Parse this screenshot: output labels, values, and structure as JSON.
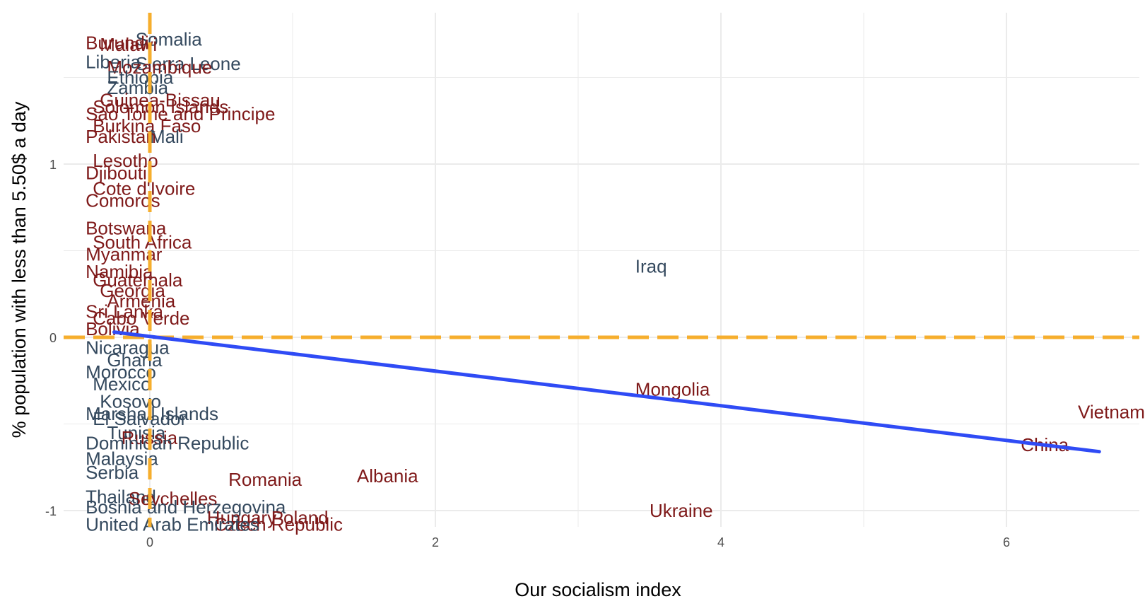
{
  "chart_data": {
    "type": "scatter",
    "xlabel": "Our socialism index",
    "ylabel": "% population with less than 5.50$ a day",
    "xlim": [
      -0.6,
      7.0
    ],
    "ylim": [
      -1.2,
      1.85
    ],
    "x_ticks": [
      0,
      2,
      4,
      6
    ],
    "y_ticks": [
      -1,
      0,
      1
    ],
    "x_tick_labels": [
      "0",
      "2",
      "4",
      "6"
    ],
    "y_tick_labels": [
      "-1",
      "0",
      "1"
    ],
    "grid": true,
    "colors": {
      "positive": "#7f1a1a",
      "negative": "#34495e",
      "reference": "#f6ae2d",
      "trend": "#2f4bf5",
      "grid": "#ebebeb"
    },
    "reference_lines": {
      "x": 0,
      "y": 0
    },
    "trend_line": {
      "x": [
        -0.25,
        6.65
      ],
      "y": [
        0.03,
        -0.66
      ]
    },
    "points": [
      {
        "label": "Somalia",
        "x": -0.1,
        "y": 1.72,
        "group": "negative"
      },
      {
        "label": "Burundi",
        "x": -0.45,
        "y": 1.7,
        "group": "positive"
      },
      {
        "label": "Malawi",
        "x": -0.35,
        "y": 1.69,
        "group": "positive"
      },
      {
        "label": "Sierra Leone",
        "x": -0.1,
        "y": 1.58,
        "group": "negative"
      },
      {
        "label": "Liberia",
        "x": -0.45,
        "y": 1.59,
        "group": "negative"
      },
      {
        "label": "Mozambique",
        "x": -0.3,
        "y": 1.56,
        "group": "positive"
      },
      {
        "label": "Ethiopia",
        "x": -0.3,
        "y": 1.5,
        "group": "negative"
      },
      {
        "label": "Zambia",
        "x": -0.3,
        "y": 1.44,
        "group": "negative"
      },
      {
        "label": "Guinea-Bissau",
        "x": -0.35,
        "y": 1.37,
        "group": "positive"
      },
      {
        "label": "Solomon Islands",
        "x": -0.4,
        "y": 1.33,
        "group": "positive"
      },
      {
        "label": "Sao Tome and Principe",
        "x": -0.45,
        "y": 1.29,
        "group": "positive"
      },
      {
        "label": "Burkina Faso",
        "x": -0.4,
        "y": 1.22,
        "group": "positive"
      },
      {
        "label": "Mali",
        "x": 0.0,
        "y": 1.16,
        "group": "negative"
      },
      {
        "label": "Pakistan",
        "x": -0.45,
        "y": 1.16,
        "group": "positive"
      },
      {
        "label": "Lesotho",
        "x": -0.4,
        "y": 1.02,
        "group": "positive"
      },
      {
        "label": "Djibouti",
        "x": -0.45,
        "y": 0.95,
        "group": "positive"
      },
      {
        "label": "Cote d'Ivoire",
        "x": -0.4,
        "y": 0.86,
        "group": "positive"
      },
      {
        "label": "Comoros",
        "x": -0.45,
        "y": 0.79,
        "group": "positive"
      },
      {
        "label": "Botswana",
        "x": -0.45,
        "y": 0.63,
        "group": "positive"
      },
      {
        "label": "South Africa",
        "x": -0.4,
        "y": 0.55,
        "group": "positive"
      },
      {
        "label": "Myanmar",
        "x": -0.45,
        "y": 0.48,
        "group": "positive"
      },
      {
        "label": "Namibia",
        "x": -0.45,
        "y": 0.38,
        "group": "positive"
      },
      {
        "label": "Guatemala",
        "x": -0.4,
        "y": 0.33,
        "group": "positive"
      },
      {
        "label": "Georgia",
        "x": -0.35,
        "y": 0.27,
        "group": "positive"
      },
      {
        "label": "Armenia",
        "x": -0.3,
        "y": 0.21,
        "group": "positive"
      },
      {
        "label": "Sri Lanka",
        "x": -0.45,
        "y": 0.15,
        "group": "positive"
      },
      {
        "label": "Cabo Verde",
        "x": -0.4,
        "y": 0.11,
        "group": "positive"
      },
      {
        "label": "Bolivia",
        "x": -0.45,
        "y": 0.05,
        "group": "positive"
      },
      {
        "label": "Iraq",
        "x": 3.4,
        "y": 0.41,
        "group": "negative"
      },
      {
        "label": "Nicaragua",
        "x": -0.45,
        "y": -0.06,
        "group": "negative"
      },
      {
        "label": "Ghana",
        "x": -0.3,
        "y": -0.13,
        "group": "negative"
      },
      {
        "label": "Morocco",
        "x": -0.45,
        "y": -0.2,
        "group": "negative"
      },
      {
        "label": "Mexico",
        "x": -0.4,
        "y": -0.27,
        "group": "negative"
      },
      {
        "label": "Kosovo",
        "x": -0.35,
        "y": -0.37,
        "group": "negative"
      },
      {
        "label": "Marshall Islands",
        "x": -0.45,
        "y": -0.44,
        "group": "negative"
      },
      {
        "label": "El Salvador",
        "x": -0.4,
        "y": -0.47,
        "group": "negative"
      },
      {
        "label": "Mongolia",
        "x": 3.4,
        "y": -0.3,
        "group": "positive"
      },
      {
        "label": "Vietnam",
        "x": 6.5,
        "y": -0.43,
        "group": "positive"
      },
      {
        "label": "China",
        "x": 6.1,
        "y": -0.62,
        "group": "positive"
      },
      {
        "label": "Tunisia",
        "x": -0.3,
        "y": -0.55,
        "group": "negative"
      },
      {
        "label": "Russia",
        "x": -0.2,
        "y": -0.58,
        "group": "positive"
      },
      {
        "label": "Dominican Republic",
        "x": -0.45,
        "y": -0.61,
        "group": "negative"
      },
      {
        "label": "Malaysia",
        "x": -0.45,
        "y": -0.7,
        "group": "negative"
      },
      {
        "label": "Serbia",
        "x": -0.45,
        "y": -0.78,
        "group": "negative"
      },
      {
        "label": "Romania",
        "x": 0.55,
        "y": -0.82,
        "group": "positive"
      },
      {
        "label": "Albania",
        "x": 1.45,
        "y": -0.8,
        "group": "positive"
      },
      {
        "label": "Thailand",
        "x": -0.45,
        "y": -0.92,
        "group": "negative"
      },
      {
        "label": "Seychelles",
        "x": -0.15,
        "y": -0.93,
        "group": "positive"
      },
      {
        "label": "Bosnia and Herzegovina",
        "x": -0.45,
        "y": -0.98,
        "group": "negative"
      },
      {
        "label": "Ukraine",
        "x": 3.5,
        "y": -1.0,
        "group": "positive"
      },
      {
        "label": "Hungary",
        "x": 0.4,
        "y": -1.04,
        "group": "positive"
      },
      {
        "label": "Poland",
        "x": 0.85,
        "y": -1.04,
        "group": "positive"
      },
      {
        "label": "Czech Republic",
        "x": 0.45,
        "y": -1.08,
        "group": "positive"
      },
      {
        "label": "United Arab Emirates",
        "x": -0.45,
        "y": -1.08,
        "group": "negative"
      }
    ]
  }
}
